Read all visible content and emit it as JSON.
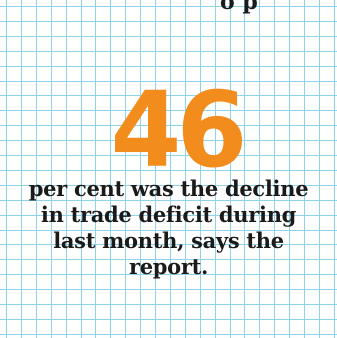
{
  "top_fragment": "o  p",
  "stat": {
    "number": "46"
  },
  "caption": {
    "lines": [
      "per cent was the decline",
      "in trade deficit during",
      "last month, says the",
      "report."
    ]
  },
  "colors": {
    "background": "#ffffff",
    "grid_line": "#8fd3ea",
    "number": "#f28c1c",
    "text": "#1a1a1a"
  }
}
